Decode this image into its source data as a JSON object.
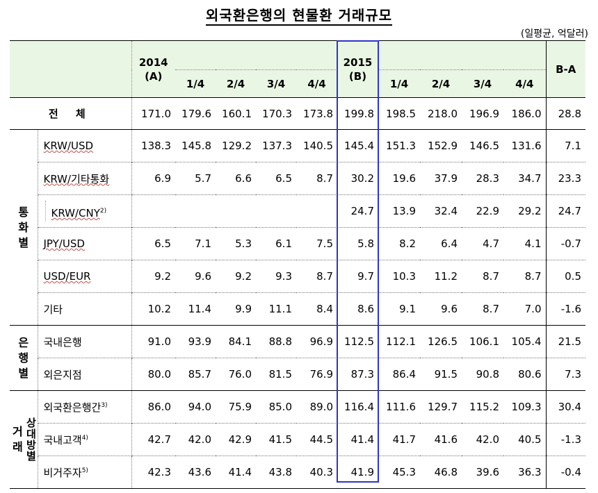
{
  "title": "외국환은행의 현물환 거래규모",
  "unit": "(일평균, 억달러)",
  "header": {
    "y2014": "2014",
    "y2014_sub": "(A)",
    "y2015": "2015",
    "y2015_sub": "(B)",
    "q1": "1/4",
    "q2": "2/4",
    "q3": "3/4",
    "q4": "4/4",
    "diff": "B-A"
  },
  "total": {
    "label": "전 체",
    "values": [
      "171.0",
      "179.6",
      "160.1",
      "170.3",
      "173.8",
      "199.8",
      "198.5",
      "218.0",
      "196.9",
      "186.0",
      "28.8"
    ]
  },
  "groups": {
    "currency": [
      "통",
      "화",
      "별"
    ],
    "bank": [
      "은",
      "행",
      "별"
    ],
    "party_outer": [
      "거",
      "래"
    ],
    "party_inner": [
      "상",
      "대",
      "방",
      "별"
    ]
  },
  "rows": {
    "krw_usd": {
      "label": "KRW/USD",
      "values": [
        "138.3",
        "145.8",
        "129.2",
        "137.3",
        "140.5",
        "145.4",
        "151.3",
        "152.9",
        "146.5",
        "131.6",
        "7.1"
      ]
    },
    "krw_other": {
      "label": "KRW/기타통화",
      "values": [
        "6.9",
        "5.7",
        "6.6",
        "6.5",
        "8.7",
        "30.2",
        "19.6",
        "37.9",
        "28.3",
        "34.7",
        "23.3"
      ]
    },
    "krw_cny": {
      "label": "KRW/CNY",
      "note": "2)",
      "values": [
        "",
        "",
        "",
        "",
        "",
        "24.7",
        "13.9",
        "32.4",
        "22.9",
        "29.2",
        "24.7"
      ]
    },
    "jpy_usd": {
      "label": "JPY/USD",
      "values": [
        "6.5",
        "7.1",
        "5.3",
        "6.1",
        "7.5",
        "5.8",
        "8.2",
        "6.4",
        "4.7",
        "4.1",
        "-0.7"
      ]
    },
    "usd_eur": {
      "label": "USD/EUR",
      "values": [
        "9.2",
        "9.6",
        "9.2",
        "9.3",
        "8.7",
        "9.7",
        "10.3",
        "11.2",
        "8.7",
        "8.7",
        "0.5"
      ]
    },
    "other": {
      "label": "기타",
      "values": [
        "10.2",
        "11.4",
        "9.9",
        "11.1",
        "8.4",
        "8.6",
        "9.1",
        "9.6",
        "8.7",
        "7.0",
        "-1.6"
      ]
    },
    "domestic": {
      "label": "국내은행",
      "values": [
        "91.0",
        "93.9",
        "84.1",
        "88.8",
        "96.9",
        "112.5",
        "112.1",
        "126.5",
        "106.1",
        "105.4",
        "21.5"
      ]
    },
    "foreign": {
      "label": "외은지점",
      "values": [
        "80.0",
        "85.7",
        "76.0",
        "81.5",
        "76.9",
        "87.3",
        "86.4",
        "91.5",
        "90.8",
        "80.6",
        "7.3"
      ]
    },
    "interbank": {
      "label": "외국환은행간",
      "note": "3)",
      "values": [
        "86.0",
        "94.0",
        "75.9",
        "85.0",
        "89.0",
        "116.4",
        "111.6",
        "129.7",
        "115.2",
        "109.3",
        "30.4"
      ]
    },
    "customer": {
      "label": "국내고객",
      "note": "4)",
      "values": [
        "42.7",
        "42.0",
        "42.9",
        "41.5",
        "44.5",
        "41.4",
        "41.7",
        "41.6",
        "42.0",
        "40.5",
        "-1.3"
      ]
    },
    "nonres": {
      "label": "비거주자",
      "note": "5)",
      "values": [
        "42.3",
        "43.6",
        "41.4",
        "43.8",
        "40.3",
        "41.9",
        "45.3",
        "46.8",
        "39.6",
        "36.3",
        "-0.4"
      ]
    }
  },
  "colors": {
    "header_bg": "#e9f6e3",
    "highlight_border": "#2d35c8",
    "wavy_underline": "#c0504d"
  }
}
